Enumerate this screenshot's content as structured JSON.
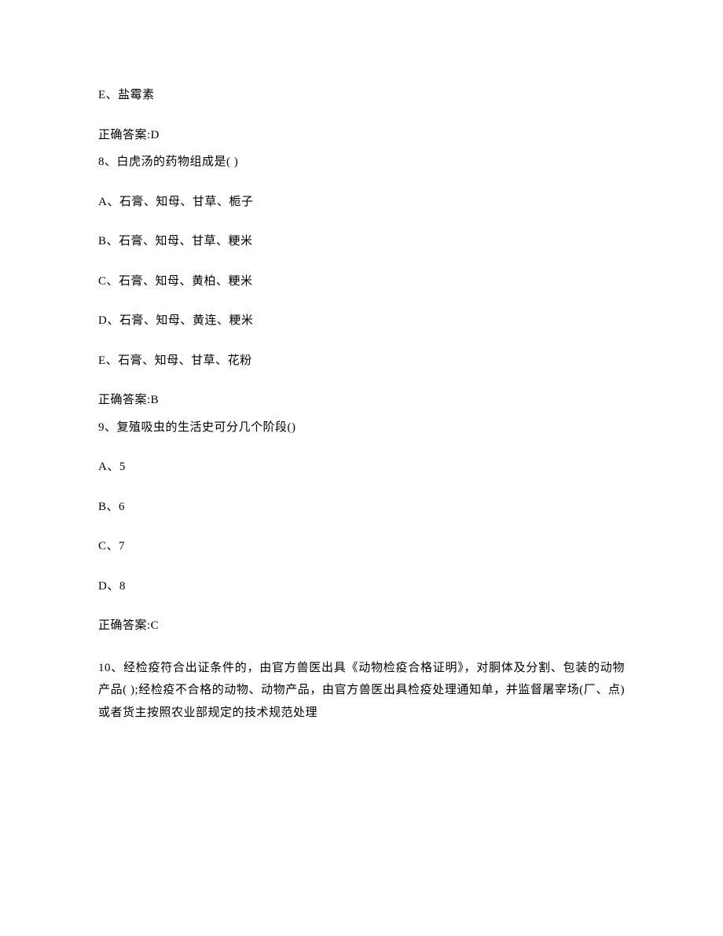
{
  "q7": {
    "optionE": "E、盐霉素",
    "answer": "正确答案:D"
  },
  "q8": {
    "stem": "8、白虎汤的药物组成是( )",
    "optionA": "A、石膏、知母、甘草、栀子",
    "optionB": "B、石膏、知母、甘草、粳米",
    "optionC": "C、石膏、知母、黄柏、粳米",
    "optionD": "D、石膏、知母、黄连、粳米",
    "optionE": "E、石膏、知母、甘草、花粉",
    "answer": "正确答案:B"
  },
  "q9": {
    "stem": "9、复殖吸虫的生活史可分几个阶段()",
    "optionA": "A、5",
    "optionB": "B、6",
    "optionC": "C、7",
    "optionD": "D、8",
    "answer": "正确答案:C"
  },
  "q10": {
    "stem": "10、经检疫符合出证条件的，由官方兽医出具《动物检疫合格证明》，对胴体及分割、包装的动物产品( );经检疫不合格的动物、动物产品，由官方兽医出具检疫处理通知单，并监督屠宰场(厂、点)或者货主按照农业部规定的技术规范处理"
  }
}
